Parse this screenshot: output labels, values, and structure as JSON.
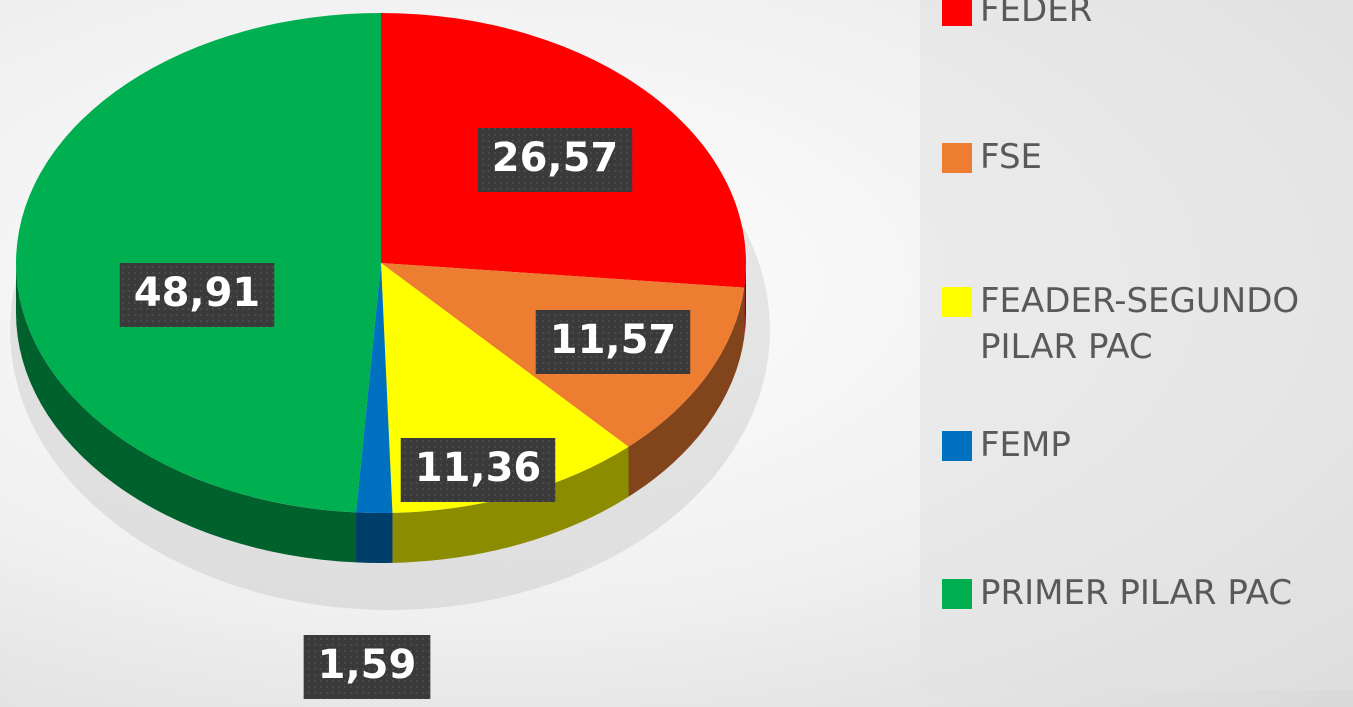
{
  "chart_data": {
    "type": "pie",
    "categories": [
      "FEDER",
      "FSE",
      "FEADER-SEGUNDO PILAR PAC",
      "FEMP",
      "PRIMER PILAR PAC"
    ],
    "values": [
      26.57,
      11.57,
      11.36,
      1.59,
      48.91
    ],
    "value_labels": [
      "26,57",
      "11,57",
      "11,36",
      "1,59",
      "48,91"
    ],
    "colors": [
      "#ff0000",
      "#ed7d31",
      "#ffff00",
      "#0070c0",
      "#00b050"
    ],
    "legend": "right"
  }
}
